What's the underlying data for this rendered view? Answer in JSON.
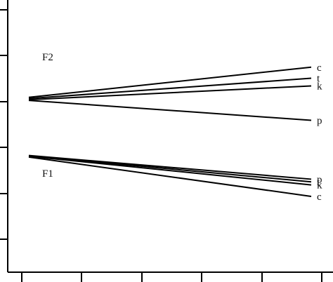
{
  "chart_data": {
    "type": "line",
    "title": "",
    "xlabel": "",
    "ylabel": "",
    "x": [
      0,
      1
    ],
    "groups": [
      {
        "label": "F2",
        "series": [
          {
            "name": "c",
            "values": [
              0.505,
              0.9
            ]
          },
          {
            "name": "t",
            "values": [
              0.49,
              0.755
            ]
          },
          {
            "name": "k",
            "values": [
              0.475,
              0.655
            ]
          },
          {
            "name": "p",
            "values": [
              0.465,
              0.205
            ]
          }
        ]
      },
      {
        "label": "F1",
        "series": [
          {
            "name": "p",
            "values": [
              -0.255,
              -0.565
            ]
          },
          {
            "name": "t",
            "values": [
              -0.26,
              -0.6
            ]
          },
          {
            "name": "k",
            "values": [
              -0.265,
              -0.64
            ]
          },
          {
            "name": "c",
            "values": [
              -0.275,
              -0.79
            ]
          }
        ]
      }
    ],
    "ylim": [
      -1.35,
      1.65
    ],
    "grid": false,
    "legend": "none"
  }
}
